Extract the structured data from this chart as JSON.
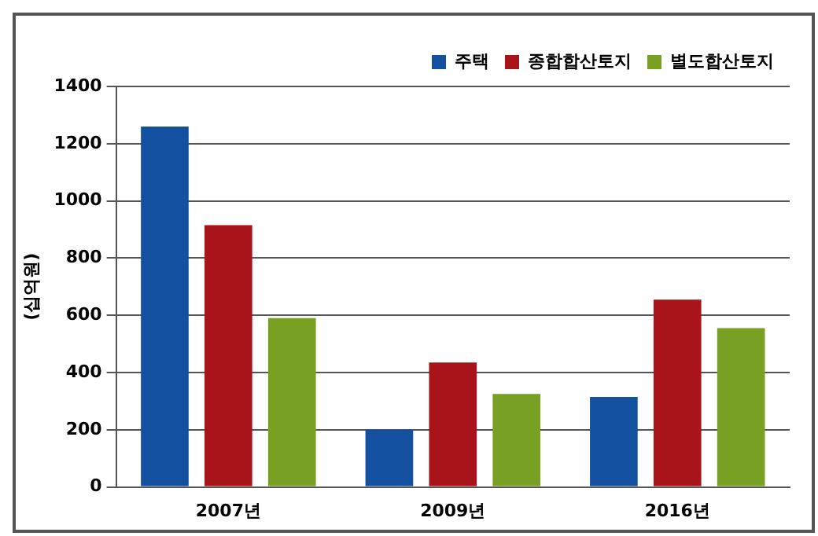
{
  "chart_data": {
    "type": "bar",
    "ylabel": "(십억원)",
    "categories": [
      "2007년",
      "2009년",
      "2016년"
    ],
    "series": [
      {
        "name": "주택",
        "color": "#1450a0",
        "values": [
          1260,
          200,
          315
        ]
      },
      {
        "name": "종합합산토지",
        "color": "#a8141a",
        "values": [
          915,
          435,
          655
        ]
      },
      {
        "name": "별도합산토지",
        "color": "#78a023",
        "values": [
          590,
          325,
          555
        ]
      }
    ],
    "ylim": [
      0,
      1400
    ],
    "yticks": [
      0,
      200,
      400,
      600,
      800,
      1000,
      1200,
      1400
    ],
    "grid": "y",
    "legend": "top right"
  }
}
